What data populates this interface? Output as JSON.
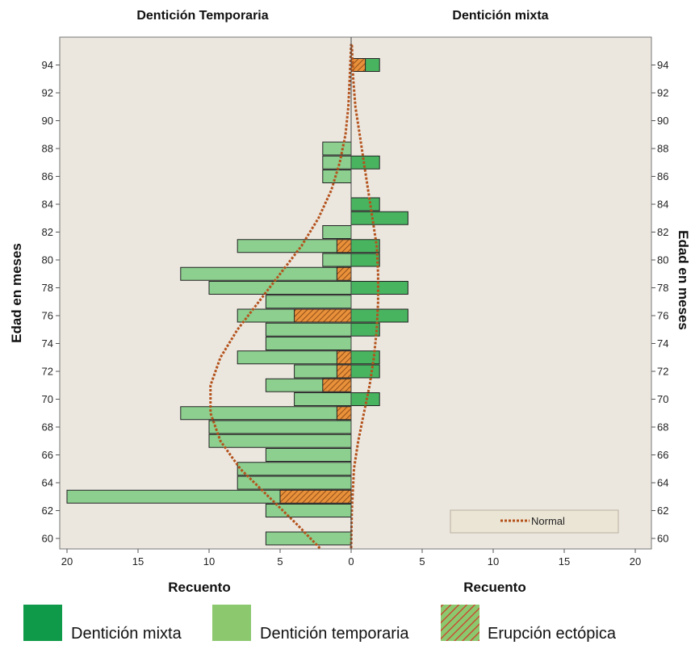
{
  "chart_data": {
    "type": "bar",
    "orientation": "horizontal-population-pyramid",
    "panels": [
      {
        "title": "Dentición Temporaria",
        "side": "left",
        "xlabel": "Recuento"
      },
      {
        "title": "Dentición mixta",
        "side": "right",
        "xlabel": "Recuento"
      }
    ],
    "ylabel": "Edad en meses",
    "x_ticks": [
      "20",
      "15",
      "10",
      "5",
      "0",
      "5",
      "10",
      "15",
      "20"
    ],
    "y_ticks": [
      "60",
      "62",
      "64",
      "66",
      "68",
      "70",
      "72",
      "74",
      "76",
      "78",
      "80",
      "82",
      "84",
      "86",
      "88",
      "90",
      "92",
      "94"
    ],
    "xlim": [
      0,
      20
    ],
    "ylim": [
      59.5,
      95.5
    ],
    "grid": false,
    "left_bars": [
      {
        "age": 60,
        "total": 6,
        "ectopic": 0
      },
      {
        "age": 62,
        "total": 6,
        "ectopic": 0
      },
      {
        "age": 63,
        "total": 20,
        "ectopic": 5
      },
      {
        "age": 64,
        "total": 8,
        "ectopic": 0
      },
      {
        "age": 65,
        "total": 8,
        "ectopic": 0
      },
      {
        "age": 66,
        "total": 6,
        "ectopic": 0
      },
      {
        "age": 67,
        "total": 10,
        "ectopic": 0
      },
      {
        "age": 68,
        "total": 10,
        "ectopic": 0
      },
      {
        "age": 69,
        "total": 12,
        "ectopic": 1
      },
      {
        "age": 70,
        "total": 4,
        "ectopic": 0
      },
      {
        "age": 71,
        "total": 6,
        "ectopic": 2
      },
      {
        "age": 72,
        "total": 4,
        "ectopic": 1
      },
      {
        "age": 73,
        "total": 8,
        "ectopic": 1
      },
      {
        "age": 74,
        "total": 6,
        "ectopic": 0
      },
      {
        "age": 75,
        "total": 6,
        "ectopic": 0
      },
      {
        "age": 76,
        "total": 8,
        "ectopic": 4
      },
      {
        "age": 77,
        "total": 6,
        "ectopic": 0
      },
      {
        "age": 78,
        "total": 10,
        "ectopic": 0
      },
      {
        "age": 79,
        "total": 12,
        "ectopic": 1
      },
      {
        "age": 80,
        "total": 2,
        "ectopic": 0
      },
      {
        "age": 81,
        "total": 8,
        "ectopic": 1
      },
      {
        "age": 82,
        "total": 2,
        "ectopic": 0
      },
      {
        "age": 86,
        "total": 2,
        "ectopic": 0
      },
      {
        "age": 87,
        "total": 2,
        "ectopic": 0
      },
      {
        "age": 88,
        "total": 2,
        "ectopic": 0
      }
    ],
    "right_bars": [
      {
        "age": 70,
        "total": 2,
        "ectopic": 0
      },
      {
        "age": 72,
        "total": 2,
        "ectopic": 0
      },
      {
        "age": 73,
        "total": 2,
        "ectopic": 0
      },
      {
        "age": 75,
        "total": 2,
        "ectopic": 0
      },
      {
        "age": 76,
        "total": 4,
        "ectopic": 0
      },
      {
        "age": 78,
        "total": 4,
        "ectopic": 0
      },
      {
        "age": 80,
        "total": 2,
        "ectopic": 0
      },
      {
        "age": 81,
        "total": 2,
        "ectopic": 0
      },
      {
        "age": 83,
        "total": 4,
        "ectopic": 0
      },
      {
        "age": 84,
        "total": 2,
        "ectopic": 0
      },
      {
        "age": 87,
        "total": 2,
        "ectopic": 0
      },
      {
        "age": 94,
        "total": 2,
        "ectopic": 1
      }
    ],
    "left_normal_curve": [
      {
        "y": 59.3,
        "x": 2.2
      },
      {
        "y": 61,
        "x": 3.8
      },
      {
        "y": 63,
        "x": 5.8
      },
      {
        "y": 65,
        "x": 7.8
      },
      {
        "y": 67,
        "x": 9.2
      },
      {
        "y": 69,
        "x": 9.9
      },
      {
        "y": 71,
        "x": 9.9
      },
      {
        "y": 73,
        "x": 9.2
      },
      {
        "y": 75,
        "x": 8.0
      },
      {
        "y": 77,
        "x": 6.5
      },
      {
        "y": 79,
        "x": 5.0
      },
      {
        "y": 81,
        "x": 3.5
      },
      {
        "y": 83,
        "x": 2.3
      },
      {
        "y": 85,
        "x": 1.4
      },
      {
        "y": 87,
        "x": 0.8
      },
      {
        "y": 89,
        "x": 0.4
      },
      {
        "y": 91,
        "x": 0.2
      },
      {
        "y": 93,
        "x": 0.1
      },
      {
        "y": 95.5,
        "x": 0.0
      }
    ],
    "right_normal_curve": [
      {
        "y": 59.3,
        "x": 0.0
      },
      {
        "y": 62,
        "x": 0.05
      },
      {
        "y": 65,
        "x": 0.2
      },
      {
        "y": 67,
        "x": 0.5
      },
      {
        "y": 69,
        "x": 0.9
      },
      {
        "y": 71,
        "x": 1.3
      },
      {
        "y": 73,
        "x": 1.6
      },
      {
        "y": 75,
        "x": 1.8
      },
      {
        "y": 77,
        "x": 1.9
      },
      {
        "y": 79,
        "x": 1.9
      },
      {
        "y": 81,
        "x": 1.8
      },
      {
        "y": 83,
        "x": 1.5
      },
      {
        "y": 85,
        "x": 1.2
      },
      {
        "y": 87,
        "x": 0.9
      },
      {
        "y": 89,
        "x": 0.6
      },
      {
        "y": 91,
        "x": 0.3
      },
      {
        "y": 93,
        "x": 0.15
      },
      {
        "y": 95.5,
        "x": 0.05
      }
    ],
    "inner_legend": {
      "label": "Normal",
      "placement": "bottom-right"
    },
    "legend": [
      {
        "label": "Dentición mixta",
        "color": "#0e9a48",
        "kind": "solid"
      },
      {
        "label": "Dentición temporaria",
        "color": "#8cc86e",
        "kind": "solid"
      },
      {
        "label": "Erupción ectópica",
        "color": "#8cc86e",
        "hatch": "#d03a2a",
        "kind": "hatched"
      }
    ],
    "colors": {
      "mixta_bar": "#48b460",
      "temporaria_bar": "#8ccf8f",
      "ectopic_fill": "#e8903a",
      "ectopic_hatch": "#7a3d10",
      "normal_line": "#b4521c",
      "plot_bg": "#ebe7df",
      "bar_stroke": "#222222"
    }
  }
}
